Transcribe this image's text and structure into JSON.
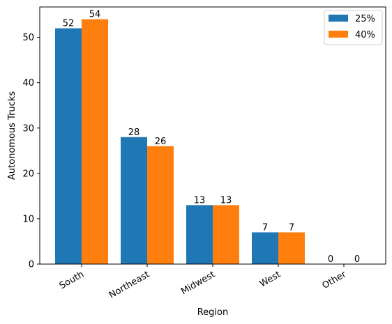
{
  "chart_data": {
    "type": "bar",
    "title": "",
    "xlabel": "Region",
    "ylabel": "Autonomous Trucks",
    "categories": [
      "South",
      "Northeast",
      "Midwest",
      "West",
      "Other"
    ],
    "series": [
      {
        "name": "25%",
        "color": "#1f77b4",
        "values": [
          52,
          28,
          13,
          7,
          0
        ]
      },
      {
        "name": "40%",
        "color": "#ff7f0e",
        "values": [
          54,
          26,
          13,
          7,
          0
        ]
      }
    ],
    "ylim": [
      0,
      56.7
    ],
    "yticks": [
      0,
      10,
      20,
      30,
      40,
      50
    ],
    "xtick_rotation_deg": 30,
    "legend_position": "top-right",
    "grid": false,
    "show_data_labels": true
  }
}
